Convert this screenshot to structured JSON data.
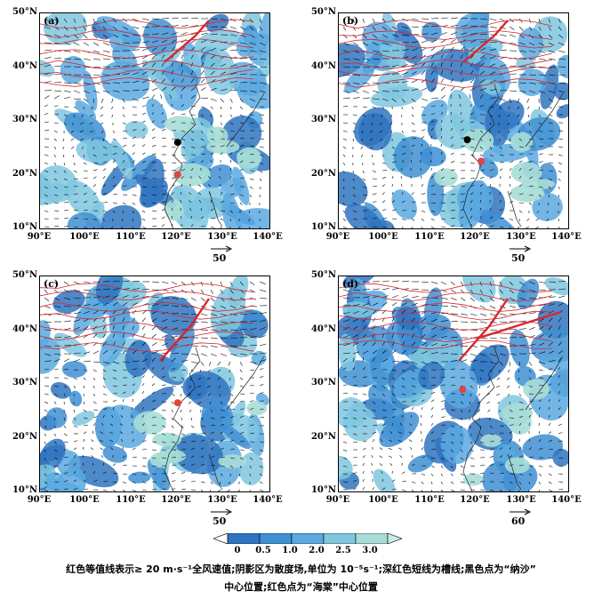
{
  "map": {
    "lat_labels": [
      "50°N",
      "40°N",
      "30°N",
      "20°N",
      "10°N"
    ],
    "lon_labels": [
      "90°E",
      "100°E",
      "110°E",
      "120°E",
      "130°E",
      "140°E"
    ],
    "lat_range": [
      10,
      50
    ],
    "lon_range": [
      90,
      140
    ]
  },
  "panels": [
    {
      "label": "(a)",
      "ref_vector": "50"
    },
    {
      "label": "(b)",
      "ref_vector": "50"
    },
    {
      "label": "(c)",
      "ref_vector": "50"
    },
    {
      "label": "(d)",
      "ref_vector": "60"
    }
  ],
  "colorbar": {
    "ticks": [
      "0",
      "0.5",
      "1.0",
      "2.0",
      "2.5",
      "3.0"
    ],
    "colors": [
      "#ffffff",
      "#2f74c0",
      "#3f8fd3",
      "#5aa9e0",
      "#7fc7df",
      "#a7ddd6",
      "#c7ece4"
    ]
  },
  "markers": {
    "red_dot_color": "#e8413c",
    "black_dot_color": "#000000",
    "contour_color": "#d9262c"
  },
  "caption": {
    "line1": "红色等值线表示≥ 20 m·s⁻¹全风速值;阴影区为散度场,单位为 10⁻⁵s⁻¹;深红色短线为槽线;黑色点为“纳沙”",
    "line2": "中心位置;红色点为“海棠”中心位置"
  }
}
